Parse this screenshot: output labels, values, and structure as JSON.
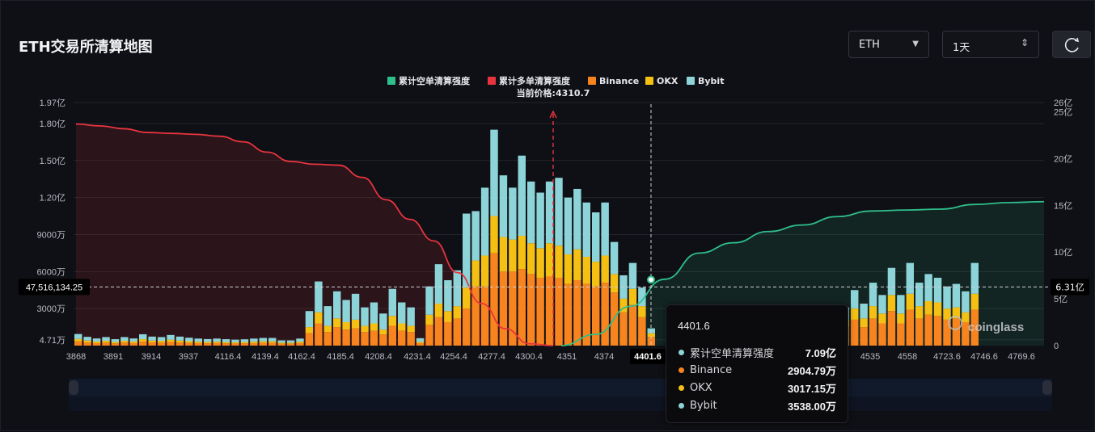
{
  "header": {
    "title": "ETH交易所清算地图",
    "coin_select": "ETH",
    "range_select": "1天"
  },
  "colors": {
    "short_line": "#2fbf8a",
    "long_line": "#e8343f",
    "binance": "#f7841e",
    "okx": "#f5c014",
    "bybit": "#8dd4d9"
  },
  "icons": {
    "refresh": "refresh-icon",
    "caret": "chevron-down-icon",
    "updown": "updown-icon"
  },
  "chart_data": {
    "type": "bar",
    "legend": {
      "placement": "top-center",
      "items": [
        "累计空单清算强度",
        "累计多单清算强度",
        "Binance",
        "OKX",
        "Bybit"
      ]
    },
    "current_price_label": "当前价格:4310.7",
    "current_price": 4310.7,
    "x_tick_labels": [
      "3868",
      "3891",
      "3914",
      "3937",
      "4116.4",
      "4139.4",
      "4162.4",
      "4185.4",
      "4208.4",
      "4231.4",
      "4254.4",
      "4277.4",
      "4300.4",
      "4351",
      "4374",
      "4401.6",
      "4535",
      "4558",
      "4723.6",
      "4746.6",
      "4769.6"
    ],
    "y_left_ticks": [
      "4.71万",
      "3000万",
      "6000万",
      "9000万",
      "1.20亿",
      "1.50亿",
      "1.80亿",
      "1.97亿"
    ],
    "y_left_values": [
      471,
      3000,
      6000,
      9000,
      12000,
      15000,
      18000,
      19700
    ],
    "y_right_ticks": [
      "0",
      "5亿",
      "10亿",
      "15亿",
      "20亿",
      "25亿",
      "26亿"
    ],
    "y_right_values": [
      0,
      5,
      10,
      15,
      20,
      25,
      26
    ],
    "y_left_unit": "万",
    "y_right_unit": "亿",
    "crosshair_left_label": "47,516,134.25",
    "crosshair_right_label": "6.31亿",
    "crosshair_y_value": 4751.6,
    "crosshair_x_label": "4401.6",
    "watermark": "coinglass",
    "bar_series_names": [
      "Binance",
      "OKX",
      "Bybit"
    ],
    "bars": {
      "binance": [
        340,
        260,
        200,
        240,
        180,
        240,
        200,
        320,
        260,
        240,
        300,
        250,
        220,
        200,
        190,
        200,
        180,
        170,
        180,
        200,
        220,
        220,
        150,
        150,
        200,
        1000,
        1800,
        1100,
        1500,
        1300,
        1400,
        1100,
        1200,
        900,
        1600,
        1200,
        1100,
        200,
        1700,
        2300,
        1900,
        2200,
        3000,
        4800,
        4800,
        7500,
        6000,
        6000,
        6200,
        5800,
        5500,
        5600,
        5500,
        5000,
        5300,
        5000,
        4800,
        5100,
        4300,
        2700,
        3300,
        2300,
        700,
        100,
        50,
        0,
        0,
        0,
        0,
        0,
        0,
        0,
        0,
        0,
        0,
        0,
        0,
        0,
        500,
        500,
        1300,
        1500,
        2100,
        1500,
        2200,
        1800,
        2800,
        1800,
        2900,
        2200,
        2500,
        2400,
        2100,
        2200,
        1900,
        2900,
        0,
        0,
        0,
        0,
        0,
        0,
        0,
        0,
        0,
        0,
        0,
        0,
        0,
        0,
        0,
        0,
        0,
        0,
        0,
        0,
        0,
        0,
        0,
        0,
        0,
        0,
        0,
        0,
        0,
        0,
        0,
        0,
        0,
        0,
        0,
        0,
        0,
        0,
        0,
        0,
        0,
        0,
        0,
        0,
        0,
        0,
        0,
        0,
        0,
        0,
        0,
        0,
        0,
        0,
        0,
        0,
        0,
        0,
        0,
        0,
        0,
        0,
        0,
        0,
        0,
        0,
        0,
        0,
        0,
        0,
        0,
        0,
        0,
        0,
        0,
        0,
        0,
        0,
        0,
        0,
        0,
        0,
        0,
        0,
        0,
        0,
        0,
        0,
        0,
        0,
        0,
        0,
        0,
        0,
        0,
        0,
        0,
        0,
        0,
        0,
        0,
        0,
        0,
        0,
        0,
        0,
        0,
        0,
        0,
        0,
        0,
        0,
        0,
        0,
        0,
        0,
        0,
        0,
        0,
        0,
        0,
        0,
        0,
        0,
        0,
        0,
        0,
        0,
        0,
        0,
        0,
        0,
        0,
        0,
        0,
        0,
        0,
        0,
        0,
        0,
        0,
        0,
        0,
        0,
        0,
        0,
        0,
        0,
        0,
        0,
        0,
        0,
        0,
        0,
        0,
        0,
        0,
        0,
        0,
        0,
        0,
        0,
        0,
        0,
        0,
        0,
        0,
        0,
        0,
        0,
        0,
        0,
        0,
        0,
        0,
        0,
        0,
        0,
        0,
        0,
        0,
        0,
        0,
        0,
        0,
        0,
        0,
        0,
        0,
        0,
        0,
        0,
        0,
        0,
        0,
        0,
        0,
        0,
        0,
        0,
        0,
        0,
        0,
        0,
        0,
        0,
        0,
        0,
        0,
        0,
        0,
        0,
        0,
        0,
        0,
        0,
        0,
        0,
        0,
        0,
        0,
        0,
        0,
        0,
        0,
        0
      ],
      "okx": [
        200,
        150,
        130,
        150,
        120,
        150,
        130,
        200,
        150,
        150,
        180,
        160,
        140,
        120,
        110,
        120,
        110,
        100,
        110,
        120,
        130,
        130,
        90,
        90,
        120,
        500,
        900,
        500,
        700,
        600,
        700,
        500,
        600,
        400,
        800,
        600,
        500,
        100,
        800,
        1100,
        900,
        1000,
        1700,
        2100,
        2500,
        3000,
        2800,
        2600,
        2700,
        2500,
        2400,
        2700,
        2600,
        2400,
        2500,
        2200,
        2000,
        2200,
        1500,
        1100,
        1300,
        900,
        300,
        50,
        0,
        0,
        0,
        0,
        0,
        0,
        0,
        0,
        0,
        0,
        0,
        0,
        0,
        0,
        200,
        200,
        500,
        600,
        900,
        700,
        1000,
        800,
        1300,
        800,
        1300,
        1000,
        1100,
        1100,
        900,
        900,
        800,
        1300,
        0,
        0,
        0,
        0,
        0,
        0,
        0,
        0,
        0,
        0,
        0,
        0,
        0,
        0,
        0,
        0,
        0,
        0,
        0,
        0,
        0,
        0,
        0,
        0,
        0,
        0,
        0,
        0,
        0,
        0,
        0,
        0,
        0,
        0,
        0,
        0,
        0,
        0,
        0,
        0,
        0,
        0,
        0,
        0,
        0,
        0,
        0,
        0,
        0,
        0,
        0,
        0,
        0,
        0,
        0,
        0,
        0,
        0,
        0,
        0,
        0,
        0,
        0,
        0,
        0,
        0,
        0,
        0,
        0,
        0,
        0,
        0,
        0,
        0,
        0,
        0,
        0,
        0,
        0,
        0,
        0,
        0,
        0,
        0,
        0,
        0,
        0,
        0,
        0,
        0,
        0,
        0,
        0,
        0,
        0,
        0,
        0,
        0,
        0,
        0,
        0,
        0,
        0,
        0,
        0,
        0,
        0,
        0,
        0,
        0,
        0,
        0,
        0,
        0,
        0,
        0,
        0,
        0,
        0,
        0,
        0,
        0,
        0,
        0,
        0,
        0,
        0,
        0,
        0,
        0,
        0,
        0,
        0,
        0,
        0,
        0,
        0,
        0,
        0,
        0,
        0,
        0,
        0,
        0,
        0,
        0,
        0,
        0,
        0,
        0,
        0,
        0,
        0,
        0,
        0,
        0,
        0,
        0,
        0,
        0,
        0,
        0,
        0,
        0,
        0,
        0,
        0,
        0,
        0,
        0,
        0,
        0,
        0,
        0,
        0,
        0,
        0,
        0,
        0,
        0,
        0,
        0,
        0,
        0,
        0,
        0,
        0,
        0,
        0,
        0,
        0,
        0,
        0,
        0,
        0,
        0,
        0,
        0,
        0,
        0,
        0,
        0,
        0,
        0,
        0,
        0,
        0,
        0,
        0,
        0,
        0,
        0,
        0,
        0,
        0,
        0,
        0,
        0,
        0,
        0,
        0
      ],
      "bybit": [
        400,
        300,
        250,
        300,
        220,
        300,
        250,
        400,
        320,
        300,
        380,
        320,
        280,
        250,
        230,
        250,
        230,
        210,
        220,
        250,
        270,
        270,
        180,
        180,
        250,
        1300,
        2500,
        1600,
        2200,
        1800,
        2100,
        1500,
        1700,
        1300,
        2200,
        1700,
        1500,
        300,
        2300,
        3200,
        2500,
        2900,
        6000,
        4000,
        5500,
        7000,
        5000,
        4200,
        6500,
        5000,
        4500,
        5000,
        5500,
        4600,
        4900,
        4400,
        4000,
        4300,
        2600,
        1900,
        2100,
        1500,
        400,
        50,
        0,
        0,
        0,
        0,
        0,
        0,
        0,
        0,
        0,
        0,
        0,
        0,
        0,
        0,
        300,
        300,
        800,
        1000,
        1500,
        1200,
        1900,
        1500,
        2200,
        1500,
        2500,
        1900,
        2200,
        2000,
        1800,
        1900,
        1700,
        2500,
        0,
        0,
        0,
        0,
        0,
        0,
        0,
        0,
        0,
        0,
        0,
        0,
        0,
        0,
        0,
        0,
        0,
        0,
        0,
        0,
        0,
        0,
        0,
        0,
        0,
        0,
        0,
        0,
        0,
        0,
        0,
        0,
        0,
        0,
        0,
        0,
        0,
        0,
        0,
        0,
        0,
        0,
        0,
        0,
        0,
        0,
        0,
        0,
        0,
        0,
        0,
        0,
        0,
        0,
        0,
        0,
        0,
        0,
        0,
        0,
        0,
        0,
        0,
        0,
        0,
        0,
        0,
        0,
        0,
        0,
        0,
        0,
        0,
        0,
        0,
        0,
        0,
        0,
        0,
        0,
        0,
        0,
        0,
        0,
        0,
        0,
        0,
        0,
        0,
        0,
        0,
        0,
        0,
        0,
        0,
        0,
        0,
        0,
        0,
        0,
        0,
        0,
        0,
        0,
        0,
        0,
        0,
        0,
        0,
        0,
        0,
        0,
        0,
        0,
        0,
        0,
        0,
        0,
        0,
        0,
        0,
        0,
        0,
        0,
        0,
        0,
        0,
        0,
        0,
        0,
        0,
        0,
        0,
        0,
        0,
        0,
        0,
        0,
        0,
        0,
        0,
        0,
        0,
        0,
        0,
        0,
        0,
        0,
        0,
        0,
        0,
        0,
        0,
        0,
        0,
        0,
        0,
        0,
        0,
        0,
        0,
        0,
        0,
        0,
        0,
        0,
        0,
        0,
        0,
        0,
        0,
        0,
        0,
        0,
        0,
        0,
        0,
        0,
        0,
        0,
        0,
        0,
        0,
        0,
        0,
        0,
        0,
        0,
        0,
        0,
        0,
        0,
        0,
        0,
        0,
        0,
        0,
        0,
        0,
        0,
        0,
        0,
        0,
        0,
        0,
        0,
        0,
        0,
        0,
        0,
        0,
        0,
        0,
        0,
        0,
        0,
        0,
        0,
        0,
        0,
        0,
        0
      ]
    },
    "long_cumulative_yi": [
      23.7,
      23.5,
      23.2,
      22.8,
      22.7,
      22.6,
      22.4,
      21.8,
      20.7,
      19.7,
      19.4,
      19.3,
      18.0,
      15.6,
      13.5,
      11.2,
      7.8,
      4.5,
      1.8,
      0.2,
      0
    ],
    "short_cumulative_yi": [
      0,
      1.2,
      4.2,
      7.1,
      9.9,
      11.0,
      12.2,
      12.9,
      13.8,
      14.4,
      14.5,
      14.6,
      15.1,
      15.3,
      15.4
    ],
    "tooltip": {
      "title": "4401.6",
      "rows": [
        {
          "label": "累计空单清算强度",
          "value": "7.09亿",
          "color": "#8dd4d9"
        },
        {
          "label": "Binance",
          "value": "2904.79万",
          "color": "#f7841e"
        },
        {
          "label": "OKX",
          "value": "3017.15万",
          "color": "#f5c014"
        },
        {
          "label": "Bybit",
          "value": "3538.00万",
          "color": "#8dd4d9"
        }
      ]
    }
  }
}
